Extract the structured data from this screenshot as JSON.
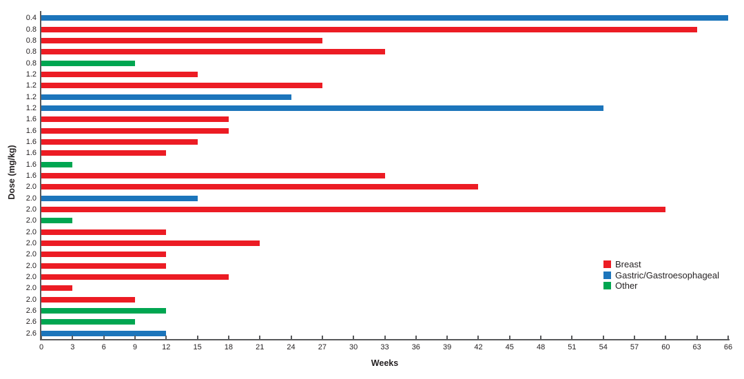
{
  "chart_data": {
    "type": "bar",
    "orientation": "horizontal",
    "title": "",
    "xlabel": "Weeks",
    "ylabel": "Dose (mg/kg)",
    "xlim": [
      0,
      66
    ],
    "x_ticks": [
      0,
      3,
      6,
      9,
      12,
      15,
      18,
      21,
      24,
      27,
      30,
      33,
      36,
      39,
      42,
      45,
      48,
      51,
      54,
      57,
      60,
      63,
      66
    ],
    "grid": false,
    "legend_position": "right-middle",
    "legend": [
      {
        "label": "Breast",
        "color": "#EC1C24"
      },
      {
        "label": "Gastric/Gastroesophageal",
        "color": "#1C75BB"
      },
      {
        "label": "Other",
        "color": "#00A651"
      }
    ],
    "series_colors": {
      "Breast": "#EC1C24",
      "Gastric/Gastroesophageal": "#1C75BB",
      "Other": "#00A651"
    },
    "bars": [
      {
        "dose": "0.4",
        "weeks": 66,
        "category": "Gastric/Gastroesophageal"
      },
      {
        "dose": "0.8",
        "weeks": 63,
        "category": "Breast"
      },
      {
        "dose": "0.8",
        "weeks": 27,
        "category": "Breast"
      },
      {
        "dose": "0.8",
        "weeks": 33,
        "category": "Breast"
      },
      {
        "dose": "0.8",
        "weeks": 9,
        "category": "Other"
      },
      {
        "dose": "1.2",
        "weeks": 15,
        "category": "Breast"
      },
      {
        "dose": "1.2",
        "weeks": 27,
        "category": "Breast"
      },
      {
        "dose": "1.2",
        "weeks": 24,
        "category": "Gastric/Gastroesophageal"
      },
      {
        "dose": "1.2",
        "weeks": 54,
        "category": "Gastric/Gastroesophageal"
      },
      {
        "dose": "1.6",
        "weeks": 18,
        "category": "Breast"
      },
      {
        "dose": "1.6",
        "weeks": 18,
        "category": "Breast"
      },
      {
        "dose": "1.6",
        "weeks": 15,
        "category": "Breast"
      },
      {
        "dose": "1.6",
        "weeks": 12,
        "category": "Breast"
      },
      {
        "dose": "1.6",
        "weeks": 3,
        "category": "Other"
      },
      {
        "dose": "1.6",
        "weeks": 33,
        "category": "Breast"
      },
      {
        "dose": "2.0",
        "weeks": 42,
        "category": "Breast"
      },
      {
        "dose": "2.0",
        "weeks": 15,
        "category": "Gastric/Gastroesophageal"
      },
      {
        "dose": "2.0",
        "weeks": 60,
        "category": "Breast"
      },
      {
        "dose": "2.0",
        "weeks": 3,
        "category": "Other"
      },
      {
        "dose": "2.0",
        "weeks": 12,
        "category": "Breast"
      },
      {
        "dose": "2.0",
        "weeks": 21,
        "category": "Breast"
      },
      {
        "dose": "2.0",
        "weeks": 12,
        "category": "Breast"
      },
      {
        "dose": "2.0",
        "weeks": 12,
        "category": "Breast"
      },
      {
        "dose": "2.0",
        "weeks": 18,
        "category": "Breast"
      },
      {
        "dose": "2.0",
        "weeks": 3,
        "category": "Breast"
      },
      {
        "dose": "2.0",
        "weeks": 9,
        "category": "Breast"
      },
      {
        "dose": "2.6",
        "weeks": 12,
        "category": "Other"
      },
      {
        "dose": "2.6",
        "weeks": 9,
        "category": "Other"
      },
      {
        "dose": "2.6",
        "weeks": 12,
        "category": "Gastric/Gastroesophageal"
      }
    ]
  },
  "colors": {
    "axis": "#58595B",
    "text": "#231F20",
    "background": "#FFFFFF"
  }
}
